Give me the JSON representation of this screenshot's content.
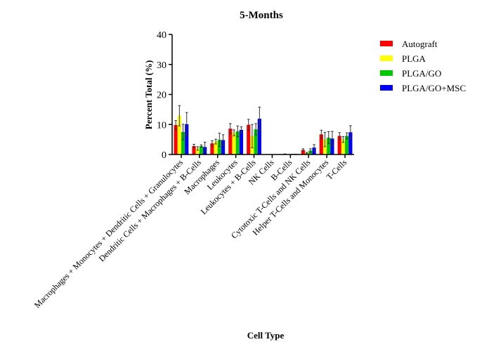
{
  "chart_data": {
    "type": "bar",
    "title": "5-Months",
    "xlabel": "Cell Type",
    "ylabel": "Percent Total (%)",
    "ylim": [
      0,
      40
    ],
    "yticks": [
      "0",
      "10",
      "20",
      "30",
      "40"
    ],
    "grid": false,
    "legend_position": "top-right",
    "categories": [
      "Macrophages + Monocytes + Dendritic Cells + Granulocytes",
      "Dendritic Cells + Macrophages + B-Cells",
      "Macrophages",
      "Leukocytes",
      "Leukocytes + B-Cells",
      "NK Cells",
      "B-Cells",
      "Cytotoxic T-Cells and NK Cells",
      "Helper T-Cells and Monocytes",
      "T-Cells"
    ],
    "series": [
      {
        "name": "Autograft",
        "color": "#ff0000",
        "values": [
          9.8,
          2.8,
          3.7,
          8.6,
          9.9,
          0.0,
          0.1,
          1.5,
          6.7,
          6.2
        ],
        "errors": [
          1.5,
          0.6,
          0.9,
          1.7,
          1.8,
          0.0,
          0.1,
          0.4,
          1.4,
          1.1
        ]
      },
      {
        "name": "PLGA",
        "color": "#ffff00",
        "values": [
          12.9,
          2.0,
          4.3,
          7.2,
          6.1,
          0.0,
          0.0,
          0.5,
          5.0,
          5.0
        ],
        "errors": [
          3.4,
          0.6,
          0.8,
          1.0,
          3.9,
          0.0,
          0.0,
          0.2,
          2.4,
          1.0
        ]
      },
      {
        "name": "PLGA/GO",
        "color": "#00c800",
        "values": [
          7.5,
          2.8,
          4.9,
          7.7,
          8.4,
          0.0,
          0.2,
          1.3,
          5.6,
          6.2
        ],
        "errors": [
          2.6,
          0.4,
          2.2,
          1.8,
          1.9,
          0.0,
          0.0,
          0.6,
          2.0,
          1.0
        ]
      },
      {
        "name": "PLGA/GO+MSC",
        "color": "#0000ff",
        "values": [
          10.1,
          2.5,
          4.8,
          8.2,
          11.9,
          0.0,
          0.2,
          2.3,
          5.3,
          7.4
        ],
        "errors": [
          3.9,
          1.6,
          1.8,
          1.0,
          3.9,
          0.0,
          0.0,
          1.0,
          2.4,
          2.2
        ]
      }
    ]
  }
}
